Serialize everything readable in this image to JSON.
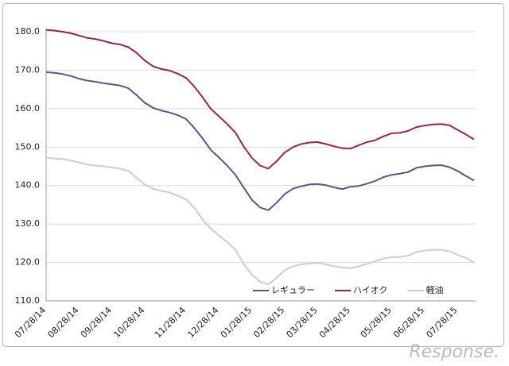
{
  "chart_data": {
    "type": "line",
    "categories": [
      "07/28/14",
      null,
      null,
      null,
      "08/28/14",
      null,
      null,
      null,
      "09/28/14",
      null,
      null,
      null,
      "10/28/14",
      null,
      null,
      null,
      null,
      "11/28/14",
      null,
      null,
      null,
      "12/28/14",
      null,
      null,
      null,
      "01/28/15",
      null,
      null,
      null,
      "02/28/15",
      null,
      null,
      null,
      "03/28/15",
      null,
      null,
      null,
      "04/28/15",
      null,
      null,
      null,
      null,
      "05/28/15",
      null,
      null,
      null,
      "06/28/15",
      null,
      null,
      null,
      "07/28/15",
      null,
      null
    ],
    "series": [
      {
        "name": "レギュラー",
        "color": "#5b5491",
        "values": [
          169.5,
          169.3,
          169,
          168.5,
          167.8,
          167.3,
          167,
          166.6,
          166.3,
          166,
          165.3,
          163.5,
          161.5,
          160.2,
          159.5,
          159,
          158.3,
          157.3,
          155,
          152.3,
          149.3,
          147.3,
          145.2,
          142.8,
          139.5,
          136.3,
          134.3,
          133.6,
          135.5,
          137.8,
          139.2,
          139.8,
          140.3,
          140.4,
          140.1,
          139.5,
          139.1,
          139.7,
          139.9,
          140.5,
          141.2,
          142.2,
          142.8,
          143.1,
          143.5,
          144.6,
          145,
          145.2,
          145.3,
          144.8,
          143.8,
          142.5,
          141.3
        ]
      },
      {
        "name": "ハイオク",
        "color": "#9a2356",
        "values": [
          180.5,
          180.3,
          180,
          179.6,
          179,
          178.4,
          178.1,
          177.6,
          177,
          176.7,
          176,
          174.5,
          172.5,
          171,
          170.3,
          169.9,
          169.1,
          168,
          165.8,
          163,
          160,
          158,
          156,
          153.8,
          150.2,
          147.2,
          145.2,
          144.4,
          146.3,
          148.6,
          150,
          150.8,
          151.2,
          151.3,
          150.8,
          150.2,
          149.7,
          149.6,
          150.5,
          151.3,
          151.8,
          152.8,
          153.6,
          153.7,
          154.2,
          155.2,
          155.6,
          155.9,
          156,
          155.7,
          154.5,
          153.3,
          152
        ]
      },
      {
        "name": "軽油",
        "color": "#c9c9f2",
        "values": [
          147.3,
          147,
          146.9,
          146.5,
          146,
          145.5,
          145.2,
          145,
          144.7,
          144.4,
          143.8,
          142,
          140.2,
          139.2,
          138.6,
          138.2,
          137.4,
          136.4,
          134.3,
          131.2,
          128.8,
          127,
          125.3,
          123.3,
          119.7,
          116.8,
          115,
          114.3,
          116,
          118,
          119,
          119.5,
          119.7,
          119.9,
          119.5,
          119,
          118.7,
          118.5,
          119,
          119.6,
          120.3,
          121,
          121.4,
          121.4,
          121.8,
          122.7,
          123.1,
          123.3,
          123.3,
          122.9,
          122,
          121.2,
          120
        ]
      }
    ],
    "ylim": [
      110,
      180
    ],
    "yticks": [
      {
        "value": 110,
        "label": "110.0"
      },
      {
        "value": 120,
        "label": "120.0"
      },
      {
        "value": 130,
        "label": "130.0"
      },
      {
        "value": 140,
        "label": "140.0"
      },
      {
        "value": 150,
        "label": "150.0"
      },
      {
        "value": 160,
        "label": "160.0"
      },
      {
        "value": 170,
        "label": "170.0"
      },
      {
        "value": 180,
        "label": "180.0"
      }
    ],
    "grid": true,
    "legend": "bottom"
  },
  "watermark": "Response."
}
